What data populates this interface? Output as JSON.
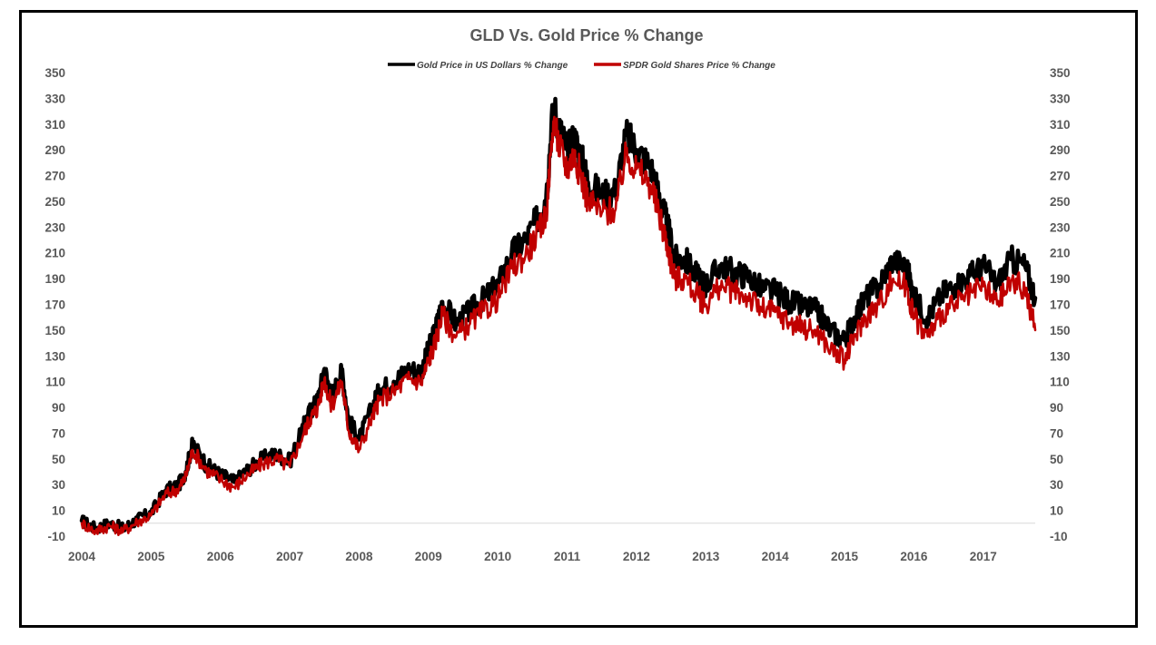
{
  "chart_data": {
    "type": "line",
    "title": "GLD Vs. Gold Price % Change",
    "xlabel": "",
    "ylabel": "",
    "xlim": [
      2004,
      2017.75
    ],
    "ylim": [
      -10,
      350
    ],
    "x_ticks": [
      "2004",
      "2005",
      "2006",
      "2007",
      "2008",
      "2009",
      "2010",
      "2011",
      "2012",
      "2013",
      "2014",
      "2015",
      "2016",
      "2017"
    ],
    "y_ticks": [
      "-10",
      "10",
      "30",
      "50",
      "70",
      "90",
      "110",
      "130",
      "150",
      "170",
      "190",
      "210",
      "230",
      "250",
      "270",
      "290",
      "310",
      "330",
      "350"
    ],
    "legend_position": "top-center",
    "grid": false,
    "series": [
      {
        "name": "Gold Price in US Dollars % Change",
        "color": "#000000",
        "x": [
          2004.0,
          2004.2,
          2004.4,
          2004.6,
          2004.8,
          2005.0,
          2005.2,
          2005.4,
          2005.5,
          2005.6,
          2005.8,
          2006.0,
          2006.2,
          2006.4,
          2006.6,
          2006.8,
          2007.0,
          2007.2,
          2007.3,
          2007.4,
          2007.5,
          2007.6,
          2007.75,
          2007.85,
          2008.0,
          2008.2,
          2008.3,
          2008.5,
          2008.7,
          2008.9,
          2009.0,
          2009.1,
          2009.2,
          2009.4,
          2009.6,
          2009.8,
          2010.0,
          2010.2,
          2010.4,
          2010.6,
          2010.7,
          2010.8,
          2010.9,
          2011.0,
          2011.1,
          2011.2,
          2011.3,
          2011.5,
          2011.7,
          2011.85,
          2012.0,
          2012.2,
          2012.35,
          2012.45,
          2012.55,
          2012.7,
          2012.9,
          2013.0,
          2013.2,
          2013.4,
          2013.6,
          2013.8,
          2014.0,
          2014.2,
          2014.4,
          2014.6,
          2014.8,
          2015.0,
          2015.15,
          2015.3,
          2015.5,
          2015.7,
          2015.9,
          2016.0,
          2016.2,
          2016.4,
          2016.6,
          2016.8,
          2017.0,
          2017.2,
          2017.4,
          2017.6,
          2017.75
        ],
        "values": [
          2,
          -4,
          0,
          -4,
          3,
          8,
          25,
          30,
          40,
          62,
          45,
          38,
          32,
          42,
          50,
          54,
          48,
          75,
          88,
          95,
          120,
          98,
          118,
          80,
          65,
          92,
          104,
          110,
          120,
          118,
          135,
          150,
          172,
          155,
          165,
          175,
          185,
          210,
          220,
          240,
          255,
          325,
          305,
          290,
          300,
          285,
          265,
          255,
          258,
          302,
          290,
          278,
          250,
          230,
          205,
          205,
          190,
          185,
          200,
          195,
          192,
          182,
          180,
          172,
          168,
          165,
          150,
          142,
          160,
          175,
          185,
          205,
          198,
          175,
          160,
          178,
          185,
          192,
          200,
          185,
          205,
          200,
          175
        ],
        "note_values_are_approximate": true
      },
      {
        "name": "SPDR Gold Shares Price % Change",
        "color": "#c00000",
        "x": [
          2004.0,
          2004.2,
          2004.4,
          2004.6,
          2004.8,
          2005.0,
          2005.2,
          2005.4,
          2005.5,
          2005.6,
          2005.8,
          2006.0,
          2006.2,
          2006.4,
          2006.6,
          2006.8,
          2007.0,
          2007.2,
          2007.3,
          2007.4,
          2007.5,
          2007.6,
          2007.75,
          2007.85,
          2008.0,
          2008.2,
          2008.3,
          2008.5,
          2008.7,
          2008.9,
          2009.0,
          2009.1,
          2009.2,
          2009.4,
          2009.6,
          2009.8,
          2010.0,
          2010.2,
          2010.4,
          2010.6,
          2010.7,
          2010.8,
          2010.9,
          2011.0,
          2011.1,
          2011.2,
          2011.3,
          2011.5,
          2011.7,
          2011.85,
          2012.0,
          2012.2,
          2012.35,
          2012.45,
          2012.55,
          2012.7,
          2012.9,
          2013.0,
          2013.2,
          2013.4,
          2013.6,
          2013.8,
          2014.0,
          2014.2,
          2014.4,
          2014.6,
          2014.8,
          2015.0,
          2015.15,
          2015.3,
          2015.5,
          2015.7,
          2015.9,
          2016.0,
          2016.2,
          2016.4,
          2016.6,
          2016.8,
          2017.0,
          2017.2,
          2017.4,
          2017.6,
          2017.75
        ],
        "values": [
          0,
          -6,
          -2,
          -6,
          1,
          6,
          22,
          27,
          36,
          57,
          41,
          34,
          28,
          38,
          46,
          50,
          44,
          70,
          82,
          89,
          112,
          91,
          110,
          72,
          57,
          84,
          96,
          102,
          112,
          110,
          126,
          141,
          162,
          145,
          155,
          165,
          174,
          198,
          208,
          227,
          241,
          312,
          291,
          276,
          286,
          270,
          251,
          241,
          244,
          287,
          275,
          263,
          235,
          215,
          190,
          190,
          175,
          170,
          184,
          180,
          176,
          166,
          164,
          156,
          152,
          149,
          135,
          127,
          145,
          160,
          170,
          190,
          183,
          160,
          145,
          163,
          170,
          176,
          184,
          170,
          188,
          182,
          150
        ],
        "note_values_are_approximate": true
      }
    ]
  }
}
